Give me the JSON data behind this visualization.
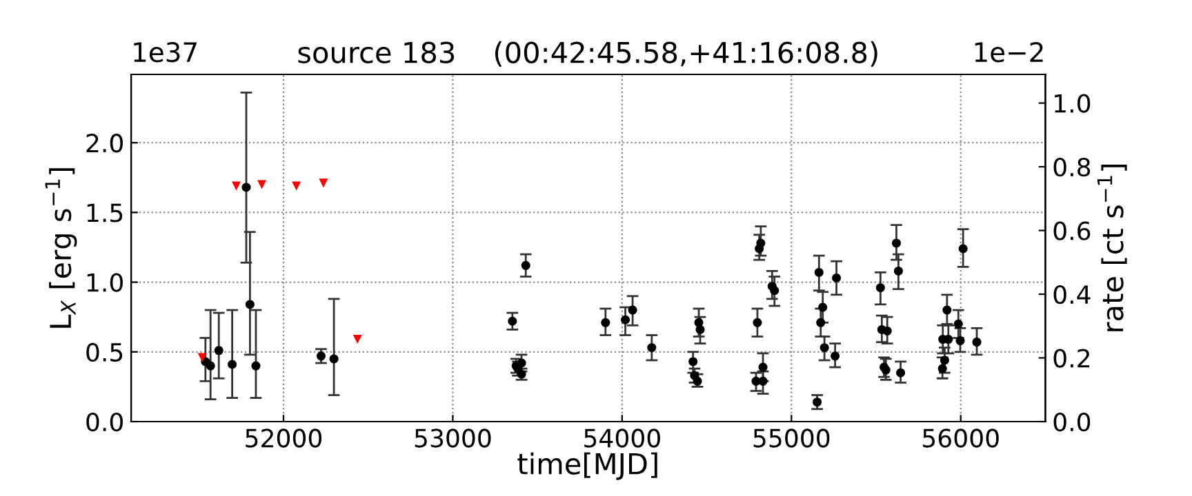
{
  "chart_data": {
    "type": "scatter",
    "title": "source 183    (00:42:45.58,+41:16:08.8)",
    "xlabel": "time[MJD]",
    "ylabel": "L$_{X}$ [erg s$^{−1}$]",
    "y2label": "rate [ct s$^{−1}$]",
    "annotations": [
      "1e37",
      "1e−2"
    ],
    "xlim": [
      51100,
      56500
    ],
    "xticks": [
      52000,
      53000,
      54000,
      55000,
      56000
    ],
    "ylim": [
      0,
      2.49
    ],
    "yticks": [
      {
        "value": 0,
        "label": "0.0"
      },
      {
        "value": 0.5,
        "label": "0.5"
      },
      {
        "value": 1,
        "label": "1.0"
      },
      {
        "value": 1.5,
        "label": "1.5"
      },
      {
        "value": 2,
        "label": "2.0"
      }
    ],
    "y2lim": [
      0,
      1.09
    ],
    "y2ticks": [
      {
        "value": 0,
        "label": "0.0"
      },
      {
        "value": 0.2,
        "label": "0.2"
      },
      {
        "value": 0.4,
        "label": "0.4"
      },
      {
        "value": 0.6,
        "label": "0.6"
      },
      {
        "value": 0.8,
        "label": "0.8"
      },
      {
        "value": 1,
        "label": "1.0"
      }
    ],
    "grid": true,
    "legend": false,
    "series": [
      {
        "marker": "circle",
        "color": "#000000",
        "x": [
          51539,
          51569,
          51618,
          51697,
          51780,
          51802,
          51837,
          52222,
          52298,
          53352,
          53374,
          53384,
          53406,
          53406,
          53431,
          53902,
          54019,
          54062,
          54175,
          54419,
          54428,
          54445,
          54453,
          54461,
          54791,
          54832,
          54832,
          54799,
          54810,
          54819,
          54886,
          54900,
          55152,
          55163,
          55173,
          55185,
          55195,
          55258,
          55266,
          55526,
          55534,
          55547,
          55558,
          55566,
          55620,
          55632,
          55645,
          55892,
          55905,
          55894,
          55927,
          55919,
          55986,
          55997,
          56014,
          56095
        ],
        "values": [
          0.43,
          0.4,
          0.51,
          0.41,
          1.68,
          0.84,
          0.4,
          0.47,
          0.45,
          0.72,
          0.4,
          0.38,
          0.42,
          0.34,
          1.12,
          0.71,
          0.73,
          0.8,
          0.53,
          0.43,
          0.33,
          0.29,
          0.71,
          0.66,
          0.29,
          0.29,
          0.39,
          0.71,
          1.24,
          1.28,
          0.97,
          0.94,
          0.14,
          1.07,
          0.71,
          0.82,
          0.53,
          0.47,
          1.03,
          0.96,
          0.66,
          0.39,
          0.37,
          0.65,
          1.28,
          1.08,
          0.35,
          0.38,
          0.44,
          0.59,
          0.59,
          0.8,
          0.7,
          0.58,
          1.24,
          0.57
        ],
        "errors": [
          [
            0.29,
            0.6
          ],
          [
            0.16,
            0.8
          ],
          [
            0.31,
            0.78
          ],
          [
            0.17,
            0.8
          ],
          [
            1.14,
            2.36
          ],
          [
            0.48,
            1.36
          ],
          [
            0.17,
            0.8
          ],
          [
            0.42,
            0.52
          ],
          [
            0.19,
            0.88
          ],
          [
            0.66,
            0.78
          ],
          [
            0.35,
            0.45
          ],
          [
            0.33,
            0.43
          ],
          [
            0.36,
            0.48
          ],
          [
            0.3,
            0.38
          ],
          [
            1.04,
            1.2
          ],
          [
            0.62,
            0.81
          ],
          [
            0.62,
            0.82
          ],
          [
            0.69,
            0.9
          ],
          [
            0.44,
            0.62
          ],
          [
            0.35,
            0.5
          ],
          [
            0.28,
            0.38
          ],
          [
            0.25,
            0.34
          ],
          [
            0.61,
            0.81
          ],
          [
            0.56,
            0.75
          ],
          [
            0.22,
            0.35
          ],
          [
            0.2,
            0.36
          ],
          [
            0.29,
            0.49
          ],
          [
            0.61,
            0.81
          ],
          [
            1.16,
            1.34
          ],
          [
            1.19,
            1.4
          ],
          [
            0.88,
            1.08
          ],
          [
            0.83,
            1.04
          ],
          [
            0.09,
            0.19
          ],
          [
            0.94,
            1.19
          ],
          [
            0.61,
            0.81
          ],
          [
            0.71,
            0.93
          ],
          [
            0.44,
            0.61
          ],
          [
            0.39,
            0.56
          ],
          [
            0.91,
            1.15
          ],
          [
            0.84,
            1.07
          ],
          [
            0.57,
            0.76
          ],
          [
            0.32,
            0.46
          ],
          [
            0.3,
            0.45
          ],
          [
            0.56,
            0.75
          ],
          [
            1.16,
            1.41
          ],
          [
            0.95,
            1.2
          ],
          [
            0.28,
            0.43
          ],
          [
            0.31,
            0.46
          ],
          [
            0.35,
            0.53
          ],
          [
            0.49,
            0.69
          ],
          [
            0.49,
            0.69
          ],
          [
            0.7,
            0.91
          ],
          [
            0.6,
            0.8
          ],
          [
            0.5,
            0.67
          ],
          [
            1.11,
            1.38
          ],
          [
            0.48,
            0.67
          ]
        ]
      },
      {
        "marker": "triangle",
        "color": "#ff0000",
        "x": [
          51520,
          51721,
          51872,
          52076,
          52236,
          52437
        ],
        "values": [
          0.46,
          1.69,
          1.7,
          1.69,
          1.71,
          0.59
        ]
      }
    ]
  }
}
